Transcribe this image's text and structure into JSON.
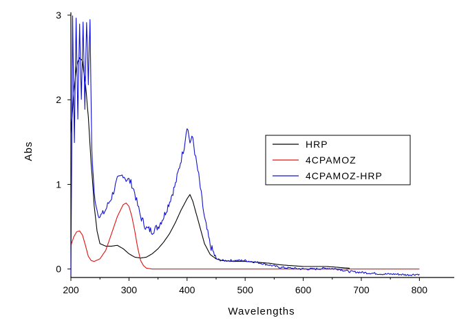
{
  "chart_data": {
    "type": "line",
    "xlabel": "Wavelengths",
    "ylabel": "Abs",
    "xlim": [
      200,
      860
    ],
    "ylim": [
      -0.1,
      3
    ],
    "xticks": [
      200,
      300,
      400,
      500,
      600,
      700,
      800
    ],
    "yticks": [
      0,
      1,
      2,
      3
    ],
    "xtick_labels": [
      "200",
      "300",
      "400",
      "500",
      "600",
      "700",
      "800"
    ],
    "ytick_labels": [
      "0",
      "1",
      "2",
      "3"
    ],
    "legend_position": "center-right",
    "series": [
      {
        "name": "HRP",
        "color": "#000000",
        "x": [
          200,
          205,
          210,
          215,
          220,
          225,
          230,
          235,
          240,
          245,
          250,
          260,
          270,
          280,
          290,
          300,
          310,
          320,
          330,
          340,
          350,
          360,
          370,
          380,
          390,
          400,
          405,
          410,
          420,
          430,
          440,
          450,
          460,
          480,
          500,
          520,
          540,
          560,
          580,
          600,
          620,
          640,
          660,
          680
        ],
        "y": [
          1.6,
          2.1,
          2.4,
          2.5,
          2.45,
          2.2,
          1.8,
          1.25,
          0.75,
          0.45,
          0.3,
          0.27,
          0.27,
          0.28,
          0.24,
          0.18,
          0.14,
          0.13,
          0.14,
          0.18,
          0.24,
          0.32,
          0.42,
          0.55,
          0.7,
          0.83,
          0.88,
          0.8,
          0.55,
          0.3,
          0.17,
          0.12,
          0.1,
          0.09,
          0.09,
          0.08,
          0.07,
          0.05,
          0.04,
          0.03,
          0.03,
          0.03,
          0.02,
          0.01
        ]
      },
      {
        "name": "4CPAMOZ",
        "color": "#e01010",
        "x": [
          200,
          205,
          210,
          215,
          220,
          225,
          230,
          235,
          240,
          250,
          260,
          270,
          280,
          290,
          295,
          300,
          305,
          310,
          315,
          320,
          325,
          330,
          340,
          360,
          400,
          500,
          600,
          700,
          800
        ],
        "y": [
          0.28,
          0.38,
          0.44,
          0.45,
          0.4,
          0.28,
          0.15,
          0.1,
          0.09,
          0.12,
          0.22,
          0.42,
          0.62,
          0.76,
          0.78,
          0.74,
          0.62,
          0.45,
          0.25,
          0.1,
          0.04,
          0.01,
          0.0,
          0.0,
          0.0,
          0.0,
          0.0,
          0.0,
          0.0
        ]
      },
      {
        "name": "4CPAMOZ-HRP",
        "color": "#1010d0",
        "x": [
          200,
          203,
          206,
          209,
          212,
          215,
          218,
          221,
          224,
          227,
          230,
          233,
          236,
          240,
          245,
          250,
          255,
          260,
          265,
          270,
          275,
          280,
          285,
          290,
          295,
          300,
          305,
          310,
          315,
          320,
          330,
          340,
          350,
          360,
          370,
          380,
          390,
          395,
          400,
          405,
          410,
          415,
          420,
          430,
          440,
          450,
          460,
          480,
          500,
          520,
          540,
          560,
          580,
          600,
          620,
          640,
          660,
          680,
          700,
          720,
          740,
          760,
          780,
          800
        ],
        "y": [
          -0.05,
          2.95,
          1.5,
          2.95,
          1.8,
          2.9,
          2.0,
          2.95,
          1.9,
          2.95,
          2.2,
          2.95,
          1.4,
          0.9,
          0.7,
          0.62,
          0.65,
          0.7,
          0.78,
          0.85,
          0.95,
          1.05,
          1.08,
          1.12,
          1.06,
          1.05,
          1.0,
          0.9,
          0.75,
          0.62,
          0.48,
          0.45,
          0.5,
          0.62,
          0.8,
          1.0,
          1.3,
          1.45,
          1.7,
          1.5,
          1.55,
          1.3,
          1.1,
          0.6,
          0.28,
          0.12,
          0.1,
          0.1,
          0.1,
          0.08,
          0.05,
          0.02,
          0.01,
          0.0,
          0.0,
          0.01,
          0.0,
          -0.03,
          -0.04,
          -0.05,
          -0.06,
          -0.06,
          -0.07,
          -0.06
        ]
      }
    ]
  }
}
